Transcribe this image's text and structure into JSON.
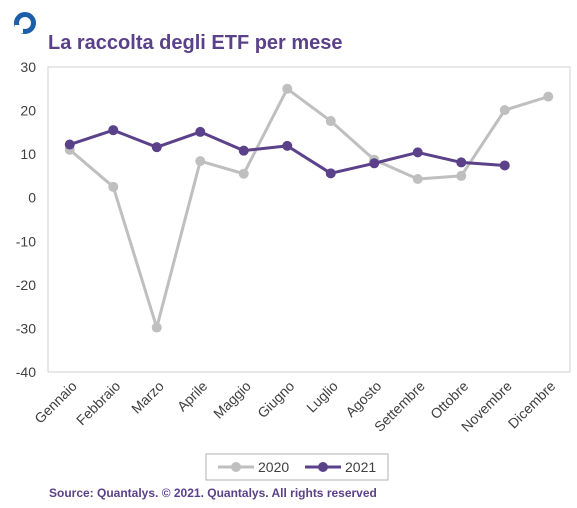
{
  "header": {
    "title": "La raccolta degli ETF per mese"
  },
  "footer": {
    "source": "Source: Quantalys. © 2021. Quantalys. All rights reserved"
  },
  "colors": {
    "title": "#5b4189",
    "series_2020": "#bfbfbf",
    "series_2021": "#5b4189",
    "logo": "#1b5fa8"
  },
  "chart_data": {
    "type": "line",
    "title": "La raccolta degli ETF per mese",
    "xlabel": "",
    "ylabel": "",
    "ylim": [
      -40,
      30
    ],
    "yticks": [
      30,
      20,
      10,
      0,
      -10,
      -20,
      -30,
      -40
    ],
    "grid": false,
    "legend_position": "bottom",
    "categories": [
      "Gennaio",
      "Febbraio",
      "Marzo",
      "Aprile",
      "Maggio",
      "Giugno",
      "Luglio",
      "Agosto",
      "Settembre",
      "Ottobre",
      "Novembre",
      "Dicembre"
    ],
    "series": [
      {
        "name": "2020",
        "values": [
          11,
          2.5,
          -29.8,
          8.4,
          5.5,
          25,
          17.6,
          8.7,
          4.3,
          5,
          20.1,
          23.2
        ]
      },
      {
        "name": "2021",
        "values": [
          12.2,
          15.5,
          11.6,
          15.1,
          10.8,
          11.9,
          5.6,
          7.9,
          10.4,
          8.1,
          7.4,
          null
        ]
      }
    ]
  }
}
